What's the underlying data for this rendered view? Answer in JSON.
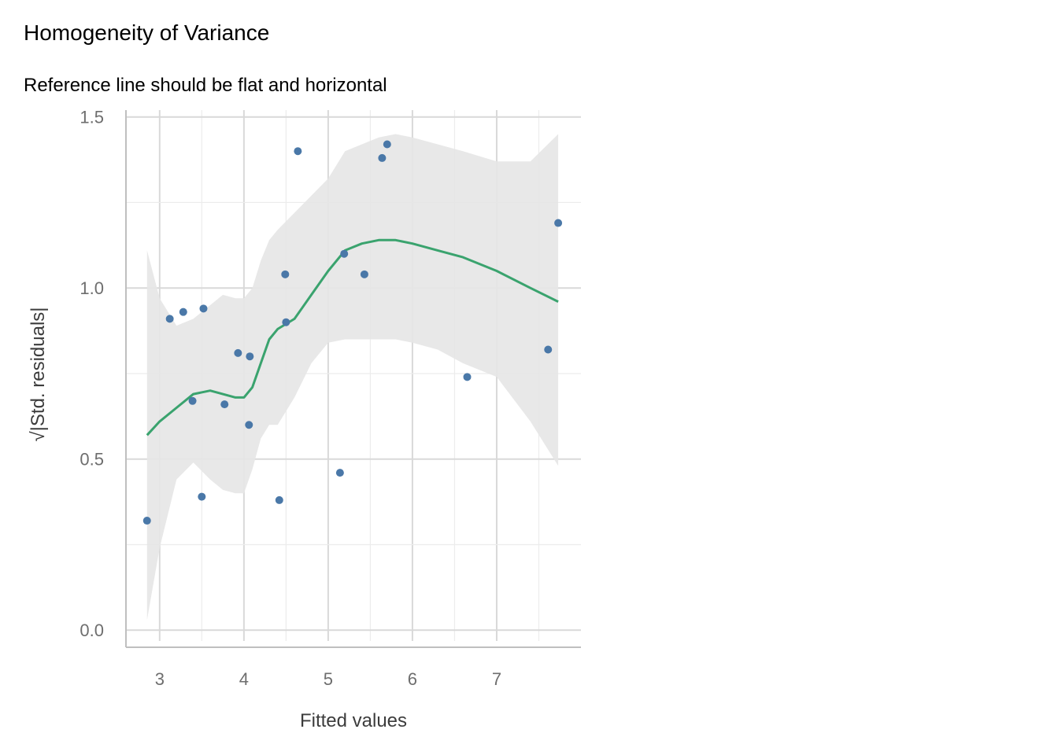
{
  "chart_data": {
    "type": "scatter",
    "title": "Homogeneity of Variance",
    "subtitle": "Reference line should be flat and horizontal",
    "xlabel": "Fitted values",
    "ylabel": "√|Std. residuals|",
    "xlim": [
      2.6,
      8.0
    ],
    "ylim": [
      -0.05,
      1.52
    ],
    "x_ticks": [
      3,
      4,
      5,
      6,
      7
    ],
    "x_tick_labels": [
      "3",
      "4",
      "5",
      "6",
      "7"
    ],
    "y_ticks": [
      0.0,
      0.5,
      1.0,
      1.5
    ],
    "y_tick_labels": [
      "0.0",
      "0.5",
      "1.0",
      "1.5"
    ],
    "grid": true,
    "colors": {
      "points": "#4a78a8",
      "smooth": "#3aa36e",
      "band": "#e6e6e6",
      "grid_major": "#d9d9d9",
      "grid_minor": "#ececec",
      "axis": "#bfbfbf"
    },
    "points": {
      "name": "residuals",
      "x": [
        2.85,
        3.12,
        3.28,
        3.39,
        3.5,
        3.52,
        3.77,
        3.93,
        4.06,
        4.07,
        4.42,
        4.49,
        4.5,
        4.64,
        5.14,
        5.19,
        5.43,
        5.64,
        5.7,
        6.65,
        7.61,
        7.73
      ],
      "y": [
        0.32,
        0.91,
        0.93,
        0.67,
        0.39,
        0.94,
        0.66,
        0.81,
        0.6,
        0.8,
        0.38,
        1.04,
        0.9,
        1.4,
        0.46,
        1.1,
        1.04,
        1.38,
        1.42,
        0.74,
        0.82,
        1.19
      ]
    },
    "smooth": {
      "name": "loess fit",
      "x": [
        2.85,
        3.0,
        3.2,
        3.4,
        3.6,
        3.75,
        3.9,
        4.0,
        4.1,
        4.2,
        4.3,
        4.4,
        4.6,
        4.8,
        5.0,
        5.2,
        5.4,
        5.6,
        5.8,
        6.0,
        6.3,
        6.6,
        7.0,
        7.4,
        7.73
      ],
      "y": [
        0.57,
        0.61,
        0.65,
        0.69,
        0.7,
        0.69,
        0.68,
        0.68,
        0.71,
        0.78,
        0.85,
        0.88,
        0.91,
        0.98,
        1.05,
        1.11,
        1.13,
        1.14,
        1.14,
        1.13,
        1.11,
        1.09,
        1.05,
        1.0,
        0.96
      ],
      "lower": [
        0.03,
        0.24,
        0.44,
        0.49,
        0.44,
        0.41,
        0.4,
        0.4,
        0.47,
        0.56,
        0.6,
        0.6,
        0.68,
        0.78,
        0.84,
        0.85,
        0.85,
        0.85,
        0.85,
        0.84,
        0.82,
        0.78,
        0.74,
        0.61,
        0.48
      ],
      "upper": [
        1.11,
        0.97,
        0.89,
        0.91,
        0.95,
        0.98,
        0.97,
        0.97,
        1.0,
        1.08,
        1.14,
        1.17,
        1.22,
        1.27,
        1.32,
        1.4,
        1.42,
        1.44,
        1.45,
        1.44,
        1.42,
        1.4,
        1.37,
        1.37,
        1.45
      ]
    }
  }
}
